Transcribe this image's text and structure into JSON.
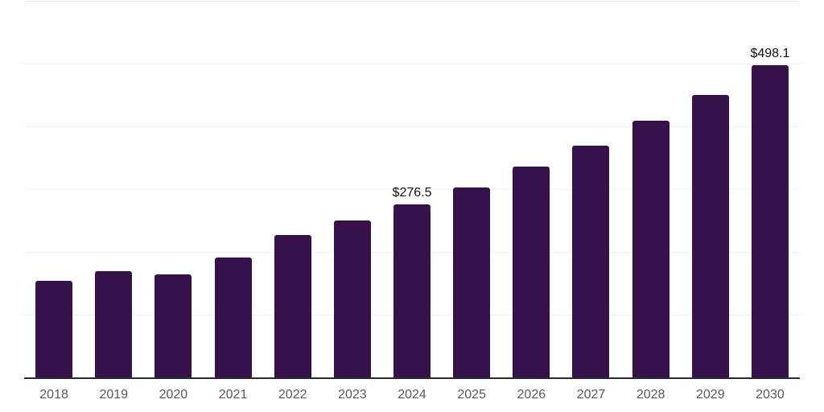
{
  "chart_data": {
    "type": "bar",
    "title": "",
    "xlabel": "",
    "ylabel": "",
    "categories": [
      "2018",
      "2019",
      "2020",
      "2021",
      "2022",
      "2023",
      "2024",
      "2025",
      "2026",
      "2027",
      "2028",
      "2029",
      "2030"
    ],
    "values": [
      155.0,
      169.9,
      165.2,
      192.1,
      228.3,
      250.9,
      276.5,
      304.2,
      337.0,
      370.2,
      410.4,
      451.3,
      498.1
    ],
    "data_labels": {
      "2024": "$276.5",
      "2030": "$498.1"
    },
    "ylim": [
      0,
      600
    ],
    "gridline_step": 100,
    "grid": true,
    "legend": false,
    "colors": {
      "bar": "#36124b",
      "gridline": "#f1f1f1",
      "top_gridline": "#e9e9e9",
      "axis_line": "#2b2b2b",
      "tick_label": "#595959",
      "data_label": "#111111",
      "background": "#ffffff"
    }
  }
}
